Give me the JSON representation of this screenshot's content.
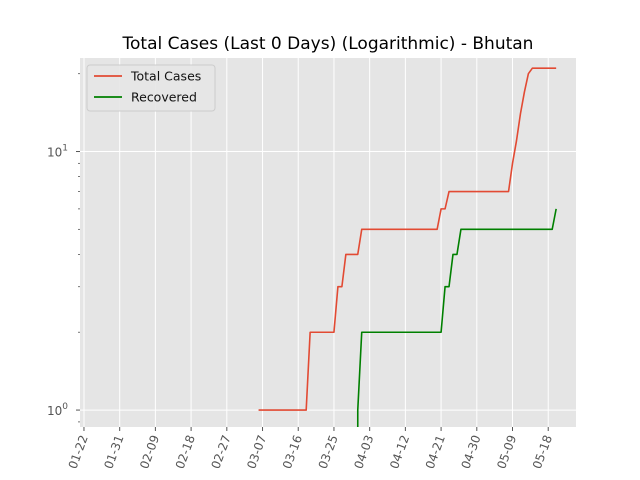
{
  "chart_data": {
    "type": "line",
    "title": "Total Cases (Last 0 Days) (Logarithmic) - Bhutan",
    "xlabel": "",
    "ylabel": "",
    "y_scale": "log",
    "ylim": [
      0.86,
      23
    ],
    "xlim": [
      "2020-01-21",
      "2020-05-25"
    ],
    "x_ticks": [
      {
        "date": "2020-01-22",
        "label": "01-22"
      },
      {
        "date": "2020-01-31",
        "label": "01-31"
      },
      {
        "date": "2020-02-09",
        "label": "02-09"
      },
      {
        "date": "2020-02-18",
        "label": "02-18"
      },
      {
        "date": "2020-02-27",
        "label": "02-27"
      },
      {
        "date": "2020-03-07",
        "label": "03-07"
      },
      {
        "date": "2020-03-16",
        "label": "03-16"
      },
      {
        "date": "2020-03-25",
        "label": "03-25"
      },
      {
        "date": "2020-04-03",
        "label": "04-03"
      },
      {
        "date": "2020-04-12",
        "label": "04-12"
      },
      {
        "date": "2020-04-21",
        "label": "04-21"
      },
      {
        "date": "2020-04-30",
        "label": "04-30"
      },
      {
        "date": "2020-05-09",
        "label": "05-09"
      },
      {
        "date": "2020-05-18",
        "label": "05-18"
      },
      {
        "date": "2020-05-27",
        "label": ""
      }
    ],
    "y_ticks": [
      {
        "value": 1,
        "label": "10",
        "exponent": "0"
      },
      {
        "value": 10,
        "label": "10",
        "exponent": "1"
      }
    ],
    "grid": true,
    "legend_position": "top-left",
    "series": [
      {
        "name": "Total Cases",
        "color": "#e24a33",
        "points": [
          [
            "2020-03-06",
            1
          ],
          [
            "2020-03-18",
            1
          ],
          [
            "2020-03-19",
            2
          ],
          [
            "2020-03-25",
            2
          ],
          [
            "2020-03-26",
            3
          ],
          [
            "2020-03-27",
            3
          ],
          [
            "2020-03-28",
            4
          ],
          [
            "2020-03-31",
            4
          ],
          [
            "2020-04-01",
            5
          ],
          [
            "2020-04-20",
            5
          ],
          [
            "2020-04-21",
            6
          ],
          [
            "2020-04-22",
            6
          ],
          [
            "2020-04-23",
            7
          ],
          [
            "2020-05-08",
            7
          ],
          [
            "2020-05-09",
            9
          ],
          [
            "2020-05-10",
            11
          ],
          [
            "2020-05-11",
            14
          ],
          [
            "2020-05-12",
            17
          ],
          [
            "2020-05-13",
            20
          ],
          [
            "2020-05-14",
            21
          ],
          [
            "2020-05-20",
            21
          ]
        ]
      },
      {
        "name": "Recovered",
        "color": "#008000",
        "points": [
          [
            "2020-03-31",
            0.86
          ],
          [
            "2020-03-31",
            1
          ],
          [
            "2020-04-01",
            2
          ],
          [
            "2020-04-21",
            2
          ],
          [
            "2020-04-22",
            3
          ],
          [
            "2020-04-23",
            3
          ],
          [
            "2020-04-24",
            4
          ],
          [
            "2020-04-25",
            4
          ],
          [
            "2020-04-26",
            5
          ],
          [
            "2020-05-19",
            5
          ],
          [
            "2020-05-20",
            6
          ]
        ]
      }
    ]
  }
}
